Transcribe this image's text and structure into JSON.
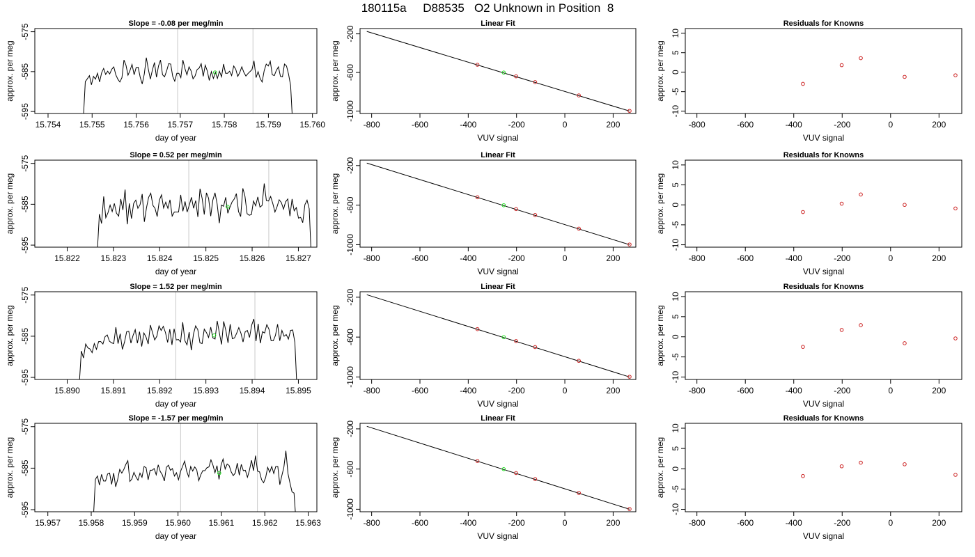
{
  "figure": {
    "title": "180115a     D88535   O2 Unknown in Position  8"
  },
  "colors": {
    "trace": "#000000",
    "known_point": "#cc2222",
    "unknown_point": "#22dd22",
    "marker_line": "#c8c8c8",
    "fit_line": "#000000"
  },
  "chart_data": [
    {
      "type": "line",
      "row": 1,
      "panel": "timeseries",
      "title": "Slope =  -0.08  per meg/min",
      "xlabel": "day of year",
      "ylabel": "approx. per meg",
      "xlim": [
        15.7537,
        15.7601
      ],
      "ylim": [
        -595.5,
        -574.2
      ],
      "xticks": [
        "15.754",
        "15.755",
        "15.756",
        "15.757",
        "15.758",
        "15.759",
        "15.760"
      ],
      "yticks": [
        "-575",
        "-585",
        "-595"
      ],
      "vlines": [
        15.75694,
        15.75865
      ],
      "trace_start": 15.7548,
      "trace_end": 15.75955,
      "unknown_point": [
        15.75779,
        -585.2
      ],
      "trace": [
        -597.0,
        -587.5,
        -586.8,
        -586.0,
        -588.3,
        -586.2,
        -586.9,
        -585.4,
        -587.6,
        -585.3,
        -584.2,
        -585.7,
        -584.9,
        -585.6,
        -584.4,
        -583.8,
        -585.8,
        -586.9,
        -587.6,
        -586.5,
        -582.1,
        -583.4,
        -585.9,
        -584.7,
        -583.2,
        -585.8,
        -584.0,
        -583.9,
        -586.4,
        -588.1,
        -585.6,
        -581.5,
        -584.4,
        -586.9,
        -584.6,
        -582.7,
        -586.4,
        -583.6,
        -582.1,
        -585.8,
        -586.3,
        -584.8,
        -583.0,
        -583.1,
        -586.2,
        -587.4,
        -585.4,
        -585.4,
        -586.5,
        -582.1,
        -584.2,
        -585.8,
        -583.8,
        -584.8,
        -586.8,
        -586.1,
        -584.5,
        -584.1,
        -583.0,
        -586.2,
        -583.4,
        -584.8,
        -587.2,
        -585.0,
        -586.7,
        -585.2,
        -586.7,
        -584.9,
        -586.3,
        -583.1,
        -585.4,
        -585.4,
        -584.9,
        -586.0,
        -583.6,
        -584.4,
        -586.2,
        -585.2,
        -583.8,
        -585.2,
        -586.1,
        -585.5,
        -585.0,
        -584.5,
        -582.3,
        -586.5,
        -585.0,
        -586.7,
        -587.6,
        -584.8,
        -583.1,
        -583.6,
        -582.4,
        -585.8,
        -586.0,
        -584.7,
        -583.8,
        -586.2,
        -586.3,
        -583.1,
        -583.6,
        -585.7,
        -588.5,
        -598.0
      ]
    },
    {
      "type": "line",
      "row": 2,
      "panel": "timeseries",
      "title": "Slope =  0.52  per meg/min",
      "xlabel": "day of year",
      "ylabel": "approx. per meg",
      "xlim": [
        15.8213,
        15.8274
      ],
      "ylim": [
        -595.5,
        -574.2
      ],
      "xticks": [
        "15.822",
        "15.823",
        "15.824",
        "15.825",
        "15.826",
        "15.827"
      ],
      "yticks": [
        "-575",
        "-585",
        "-595"
      ],
      "vlines": [
        15.82463,
        15.82636
      ],
      "trace_start": 15.82265,
      "trace_end": 15.82728,
      "unknown_point": [
        15.82547,
        -585.6
      ],
      "trace": [
        -597.0,
        -587.4,
        -589.7,
        -583.1,
        -588.3,
        -587.1,
        -585.2,
        -586.8,
        -584.8,
        -587.2,
        -587.9,
        -583.7,
        -586.4,
        -581.4,
        -589.9,
        -584.8,
        -588.5,
        -584.8,
        -584.0,
        -586.0,
        -585.1,
        -582.5,
        -589.3,
        -585.9,
        -583.3,
        -582.3,
        -585.3,
        -586.0,
        -588.0,
        -584.0,
        -582.7,
        -585.9,
        -584.5,
        -586.0,
        -583.9,
        -587.9,
        -586.9,
        -586.9,
        -586.9,
        -582.7,
        -586.7,
        -584.3,
        -586.9,
        -585.2,
        -583.3,
        -586.0,
        -584.1,
        -588.1,
        -581.2,
        -583.6,
        -587.5,
        -582.2,
        -583.5,
        -587.9,
        -584.0,
        -582.2,
        -584.9,
        -589.6,
        -585.2,
        -585.5,
        -583.3,
        -587.2,
        -585.7,
        -584.4,
        -583.7,
        -582.4,
        -586.8,
        -588.0,
        -581.1,
        -583.0,
        -587.3,
        -587.7,
        -587.5,
        -584.2,
        -585.4,
        -583.2,
        -585.7,
        -585.3,
        -579.9,
        -584.1,
        -584.2,
        -583.1,
        -584.8,
        -586.9,
        -585.6,
        -583.9,
        -584.6,
        -586.2,
        -584.4,
        -583.7,
        -587.9,
        -583.7,
        -586.6,
        -585.8,
        -588.4,
        -588.2,
        -589.5,
        -585.1,
        -584.0,
        -586.1,
        -598.0
      ]
    },
    {
      "type": "line",
      "row": 3,
      "panel": "timeseries",
      "title": "Slope =  1.52  per meg/min",
      "xlabel": "day of year",
      "ylabel": "approx. per meg",
      "xlim": [
        15.8893,
        15.8954
      ],
      "ylim": [
        -595.5,
        -574.2
      ],
      "xticks": [
        "15.890",
        "15.891",
        "15.892",
        "15.893",
        "15.894",
        "15.895"
      ],
      "yticks": [
        "-575",
        "-585",
        "-595"
      ],
      "vlines": [
        15.89235,
        15.89406
      ],
      "trace_start": 15.89026,
      "trace_end": 15.89497,
      "unknown_point": [
        15.89318,
        -584.8
      ],
      "trace": [
        -597.0,
        -588.6,
        -590.3,
        -586.9,
        -587.8,
        -588.1,
        -589.0,
        -586.8,
        -588.2,
        -586.3,
        -586.3,
        -586.9,
        -585.1,
        -584.7,
        -586.2,
        -586.6,
        -586.8,
        -582.8,
        -586.8,
        -584.4,
        -588.2,
        -586.4,
        -583.9,
        -583.8,
        -586.7,
        -584.8,
        -583.4,
        -586.7,
        -583.9,
        -587.5,
        -584.2,
        -585.2,
        -586.9,
        -582.3,
        -584.1,
        -585.9,
        -585.0,
        -582.5,
        -583.6,
        -582.6,
        -584.1,
        -586.5,
        -583.3,
        -587.1,
        -583.2,
        -585.9,
        -585.8,
        -586.4,
        -581.6,
        -586.1,
        -587.1,
        -584.0,
        -588.4,
        -584.5,
        -582.5,
        -583.4,
        -586.6,
        -586.8,
        -583.3,
        -584.1,
        -585.3,
        -582.8,
        -585.4,
        -585.7,
        -581.3,
        -584.2,
        -587.0,
        -581.4,
        -583.6,
        -586.6,
        -582.1,
        -585.6,
        -585.4,
        -584.3,
        -582.9,
        -584.3,
        -586.4,
        -583.9,
        -583.6,
        -585.3,
        -582.3,
        -580.8,
        -586.2,
        -582.0,
        -586.7,
        -583.9,
        -584.2,
        -582.2,
        -583.3,
        -586.1,
        -586.1,
        -584.8,
        -582.1,
        -586.1,
        -583.6,
        -585.0,
        -584.6,
        -585.7,
        -583.6,
        -583.5,
        -586.5,
        -598.0
      ]
    },
    {
      "type": "line",
      "row": 4,
      "panel": "timeseries",
      "title": "Slope =  -1.57  per meg/min",
      "xlabel": "day of year",
      "ylabel": "approx. per meg",
      "xlim": [
        15.9567,
        15.9632
      ],
      "ylim": [
        -595.5,
        -574.2
      ],
      "xticks": [
        "15.957",
        "15.958",
        "15.959",
        "15.960",
        "15.961",
        "15.962",
        "15.963"
      ],
      "yticks": [
        "-575",
        "-585",
        "-595"
      ],
      "vlines": [
        15.96006,
        15.96183
      ],
      "trace_start": 15.95805,
      "trace_end": 15.96272,
      "unknown_point": [
        15.96095,
        -586.2
      ],
      "trace": [
        -597.0,
        -587.7,
        -586.9,
        -589.1,
        -586.5,
        -588.1,
        -588.1,
        -586.4,
        -586.2,
        -588.9,
        -586.2,
        -589.5,
        -587.7,
        -585.3,
        -586.2,
        -585.3,
        -584.1,
        -583.2,
        -588.2,
        -587.6,
        -586.0,
        -587.1,
        -587.9,
        -586.2,
        -587.2,
        -584.6,
        -584.9,
        -587.8,
        -585.5,
        -585.5,
        -585.1,
        -586.6,
        -584.2,
        -585.8,
        -586.6,
        -588.1,
        -584.8,
        -584.3,
        -585.5,
        -585.1,
        -586.9,
        -586.1,
        -587.8,
        -585.8,
        -584.6,
        -583.3,
        -585.7,
        -587.1,
        -584.6,
        -585.7,
        -584.7,
        -585.4,
        -588.0,
        -586.6,
        -585.6,
        -585.6,
        -584.9,
        -584.7,
        -583.0,
        -584.3,
        -586.1,
        -584.4,
        -587.7,
        -584.3,
        -582.8,
        -585.2,
        -584.0,
        -584.4,
        -585.9,
        -586.8,
        -586.2,
        -583.8,
        -586.7,
        -584.1,
        -585.6,
        -585.5,
        -587.2,
        -585.5,
        -583.1,
        -585.6,
        -582.0,
        -585.7,
        -585.9,
        -587.8,
        -588.5,
        -587.3,
        -584.8,
        -586.0,
        -584.6,
        -586.3,
        -584.6,
        -584.6,
        -589.0,
        -586.8,
        -584.8,
        -580.8,
        -586.3,
        -588.6,
        -590.7,
        -591.0,
        -598.0
      ]
    },
    {
      "type": "scatter",
      "row": 1,
      "panel": "fit",
      "title": "Linear Fit",
      "xlabel": "VUV signal",
      "ylabel": "approx. per meg",
      "xlim": [
        -848,
        294
      ],
      "ylim": [
        -1025,
        -145
      ],
      "xticks": [
        "-800",
        "-600",
        "-400",
        "-200",
        "0",
        "200"
      ],
      "yticks": [
        "-200",
        "-600",
        "-1000"
      ],
      "line": [
        [
          -820,
          -175
        ],
        [
          268,
          -1000
        ]
      ],
      "knowns": [
        [
          -362,
          -520
        ],
        [
          -202,
          -640
        ],
        [
          -123,
          -700
        ],
        [
          58,
          -838
        ],
        [
          268,
          -998
        ]
      ],
      "unknown": [
        -253,
        -601
      ]
    },
    {
      "type": "scatter",
      "row": 2,
      "panel": "fit",
      "title": "Linear Fit",
      "xlabel": "VUV signal",
      "ylabel": "approx. per meg",
      "xlim": [
        -848,
        294
      ],
      "ylim": [
        -1025,
        -145
      ],
      "xticks": [
        "-800",
        "-600",
        "-400",
        "-200",
        "0",
        "200"
      ],
      "yticks": [
        "-200",
        "-600",
        "-1000"
      ],
      "line": [
        [
          -820,
          -175
        ],
        [
          268,
          -1000
        ]
      ],
      "knowns": [
        [
          -362,
          -520
        ],
        [
          -202,
          -640
        ],
        [
          -123,
          -700
        ],
        [
          58,
          -838
        ],
        [
          268,
          -998
        ]
      ],
      "unknown": [
        -253,
        -601
      ]
    },
    {
      "type": "scatter",
      "row": 3,
      "panel": "fit",
      "title": "Linear Fit",
      "xlabel": "VUV signal",
      "ylabel": "approx. per meg",
      "xlim": [
        -848,
        294
      ],
      "ylim": [
        -1025,
        -145
      ],
      "xticks": [
        "-800",
        "-600",
        "-400",
        "-200",
        "0",
        "200"
      ],
      "yticks": [
        "-200",
        "-600",
        "-1000"
      ],
      "line": [
        [
          -820,
          -175
        ],
        [
          268,
          -1000
        ]
      ],
      "knowns": [
        [
          -362,
          -520
        ],
        [
          -202,
          -640
        ],
        [
          -123,
          -700
        ],
        [
          58,
          -838
        ],
        [
          268,
          -998
        ]
      ],
      "unknown": [
        -253,
        -601
      ]
    },
    {
      "type": "scatter",
      "row": 4,
      "panel": "fit",
      "title": "Linear Fit",
      "xlabel": "VUV signal",
      "ylabel": "approx. per meg",
      "xlim": [
        -848,
        294
      ],
      "ylim": [
        -1025,
        -145
      ],
      "xticks": [
        "-800",
        "-600",
        "-400",
        "-200",
        "0",
        "200"
      ],
      "yticks": [
        "-200",
        "-600",
        "-1000"
      ],
      "line": [
        [
          -820,
          -175
        ],
        [
          268,
          -1000
        ]
      ],
      "knowns": [
        [
          -362,
          -520
        ],
        [
          -202,
          -640
        ],
        [
          -123,
          -700
        ],
        [
          58,
          -838
        ],
        [
          268,
          -998
        ]
      ],
      "unknown": [
        -253,
        -601
      ]
    },
    {
      "type": "scatter",
      "row": 1,
      "panel": "residuals",
      "title": "Residuals for Knowns",
      "xlabel": "VUV signal",
      "ylabel": "approx. per meg",
      "xlim": [
        -848,
        294
      ],
      "ylim": [
        -10.6,
        11.2
      ],
      "xticks": [
        "-800",
        "-600",
        "-400",
        "-200",
        "0",
        "200"
      ],
      "yticks": [
        "10",
        "5",
        "0",
        "-5",
        "-10"
      ],
      "points": [
        [
          -362,
          -3.0
        ],
        [
          -202,
          1.8
        ],
        [
          -123,
          3.6
        ],
        [
          58,
          -1.2
        ],
        [
          268,
          -0.8
        ]
      ]
    },
    {
      "type": "scatter",
      "row": 2,
      "panel": "residuals",
      "title": "Residuals for Knowns",
      "xlabel": "VUV signal",
      "ylabel": "approx. per meg",
      "xlim": [
        -848,
        294
      ],
      "ylim": [
        -10.6,
        11.2
      ],
      "xticks": [
        "-800",
        "-600",
        "-400",
        "-200",
        "0",
        "200"
      ],
      "yticks": [
        "10",
        "5",
        "0",
        "-5",
        "-10"
      ],
      "points": [
        [
          -362,
          -1.8
        ],
        [
          -202,
          0.3
        ],
        [
          -123,
          2.6
        ],
        [
          58,
          0.0
        ],
        [
          268,
          -0.9
        ]
      ]
    },
    {
      "type": "scatter",
      "row": 3,
      "panel": "residuals",
      "title": "Residuals for Knowns",
      "xlabel": "VUV signal",
      "ylabel": "approx. per meg",
      "xlim": [
        -848,
        294
      ],
      "ylim": [
        -10.6,
        11.2
      ],
      "xticks": [
        "-800",
        "-600",
        "-400",
        "-200",
        "0",
        "200"
      ],
      "yticks": [
        "10",
        "5",
        "0",
        "-5",
        "-10"
      ],
      "points": [
        [
          -362,
          -2.5
        ],
        [
          -202,
          1.7
        ],
        [
          -123,
          2.9
        ],
        [
          58,
          -1.6
        ],
        [
          268,
          -0.4
        ]
      ]
    },
    {
      "type": "scatter",
      "row": 4,
      "panel": "residuals",
      "title": "Residuals for Knowns",
      "xlabel": "VUV signal",
      "ylabel": "approx. per meg",
      "xlim": [
        -848,
        294
      ],
      "ylim": [
        -10.6,
        11.2
      ],
      "xticks": [
        "-800",
        "-600",
        "-400",
        "-200",
        "0",
        "200"
      ],
      "yticks": [
        "10",
        "5",
        "0",
        "-5",
        "-10"
      ],
      "points": [
        [
          -362,
          -1.8
        ],
        [
          -202,
          0.6
        ],
        [
          -123,
          1.5
        ],
        [
          58,
          1.1
        ],
        [
          268,
          -1.5
        ]
      ]
    }
  ]
}
